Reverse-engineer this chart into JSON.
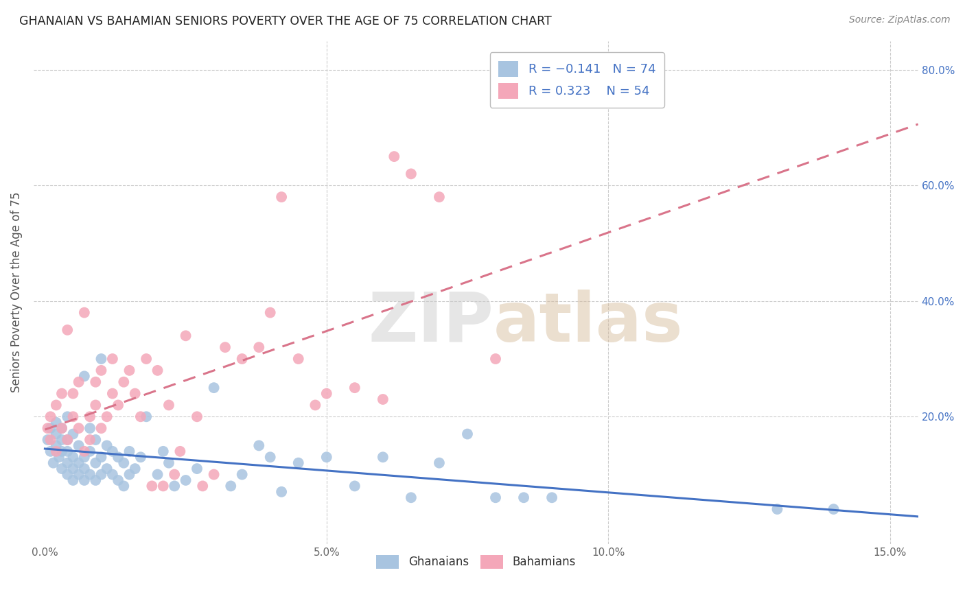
{
  "title": "GHANAIAN VS BAHAMIAN SENIORS POVERTY OVER THE AGE OF 75 CORRELATION CHART",
  "source": "Source: ZipAtlas.com",
  "ylabel": "Seniors Poverty Over the Age of 75",
  "xlabel_ticks": [
    "0.0%",
    "5.0%",
    "10.0%",
    "15.0%"
  ],
  "xlabel_vals": [
    0.0,
    0.05,
    0.1,
    0.15
  ],
  "ylabel_ticks_right": [
    "80.0%",
    "60.0%",
    "40.0%",
    "20.0%",
    ""
  ],
  "ylabel_vals": [
    0.8,
    0.6,
    0.4,
    0.2,
    0.0
  ],
  "xlim": [
    -0.002,
    0.155
  ],
  "ylim": [
    -0.02,
    0.85
  ],
  "ghanaian_R": -0.141,
  "ghanaian_N": 74,
  "bahamian_R": 0.323,
  "bahamian_N": 54,
  "ghanaian_color": "#a8c4e0",
  "bahamian_color": "#f4a7b9",
  "ghanaian_line_color": "#4472c4",
  "bahamian_line_color": "#d9748a",
  "legend_text_color": "#4472c4",
  "background_color": "#ffffff",
  "watermark_zip": "ZIP",
  "watermark_atlas": "atlas",
  "ghanaian_x": [
    0.0005,
    0.001,
    0.001,
    0.0015,
    0.002,
    0.002,
    0.002,
    0.0025,
    0.003,
    0.003,
    0.003,
    0.003,
    0.004,
    0.004,
    0.004,
    0.004,
    0.004,
    0.005,
    0.005,
    0.005,
    0.005,
    0.006,
    0.006,
    0.006,
    0.007,
    0.007,
    0.007,
    0.007,
    0.008,
    0.008,
    0.008,
    0.009,
    0.009,
    0.009,
    0.01,
    0.01,
    0.01,
    0.011,
    0.011,
    0.012,
    0.012,
    0.013,
    0.013,
    0.014,
    0.014,
    0.015,
    0.015,
    0.016,
    0.017,
    0.018,
    0.02,
    0.021,
    0.022,
    0.023,
    0.025,
    0.027,
    0.03,
    0.033,
    0.035,
    0.038,
    0.04,
    0.042,
    0.045,
    0.05,
    0.055,
    0.06,
    0.065,
    0.07,
    0.075,
    0.08,
    0.085,
    0.09,
    0.13,
    0.14
  ],
  "ghanaian_y": [
    0.16,
    0.14,
    0.18,
    0.12,
    0.15,
    0.17,
    0.19,
    0.13,
    0.11,
    0.14,
    0.16,
    0.18,
    0.1,
    0.12,
    0.14,
    0.16,
    0.2,
    0.09,
    0.11,
    0.13,
    0.17,
    0.1,
    0.12,
    0.15,
    0.09,
    0.11,
    0.13,
    0.27,
    0.1,
    0.14,
    0.18,
    0.09,
    0.12,
    0.16,
    0.1,
    0.13,
    0.3,
    0.11,
    0.15,
    0.1,
    0.14,
    0.09,
    0.13,
    0.08,
    0.12,
    0.1,
    0.14,
    0.11,
    0.13,
    0.2,
    0.1,
    0.14,
    0.12,
    0.08,
    0.09,
    0.11,
    0.25,
    0.08,
    0.1,
    0.15,
    0.13,
    0.07,
    0.12,
    0.13,
    0.08,
    0.13,
    0.06,
    0.12,
    0.17,
    0.06,
    0.06,
    0.06,
    0.04,
    0.04
  ],
  "bahamian_x": [
    0.0005,
    0.001,
    0.001,
    0.002,
    0.002,
    0.003,
    0.003,
    0.004,
    0.004,
    0.005,
    0.005,
    0.006,
    0.006,
    0.007,
    0.007,
    0.008,
    0.008,
    0.009,
    0.009,
    0.01,
    0.01,
    0.011,
    0.012,
    0.012,
    0.013,
    0.014,
    0.015,
    0.016,
    0.017,
    0.018,
    0.019,
    0.02,
    0.021,
    0.022,
    0.023,
    0.024,
    0.025,
    0.027,
    0.028,
    0.03,
    0.032,
    0.035,
    0.038,
    0.04,
    0.042,
    0.045,
    0.048,
    0.05,
    0.055,
    0.06,
    0.062,
    0.065,
    0.07,
    0.08
  ],
  "bahamian_y": [
    0.18,
    0.2,
    0.16,
    0.22,
    0.14,
    0.24,
    0.18,
    0.35,
    0.16,
    0.2,
    0.24,
    0.26,
    0.18,
    0.14,
    0.38,
    0.2,
    0.16,
    0.22,
    0.26,
    0.18,
    0.28,
    0.2,
    0.24,
    0.3,
    0.22,
    0.26,
    0.28,
    0.24,
    0.2,
    0.3,
    0.08,
    0.28,
    0.08,
    0.22,
    0.1,
    0.14,
    0.34,
    0.2,
    0.08,
    0.1,
    0.32,
    0.3,
    0.32,
    0.38,
    0.58,
    0.3,
    0.22,
    0.24,
    0.25,
    0.23,
    0.65,
    0.62,
    0.58,
    0.3
  ]
}
